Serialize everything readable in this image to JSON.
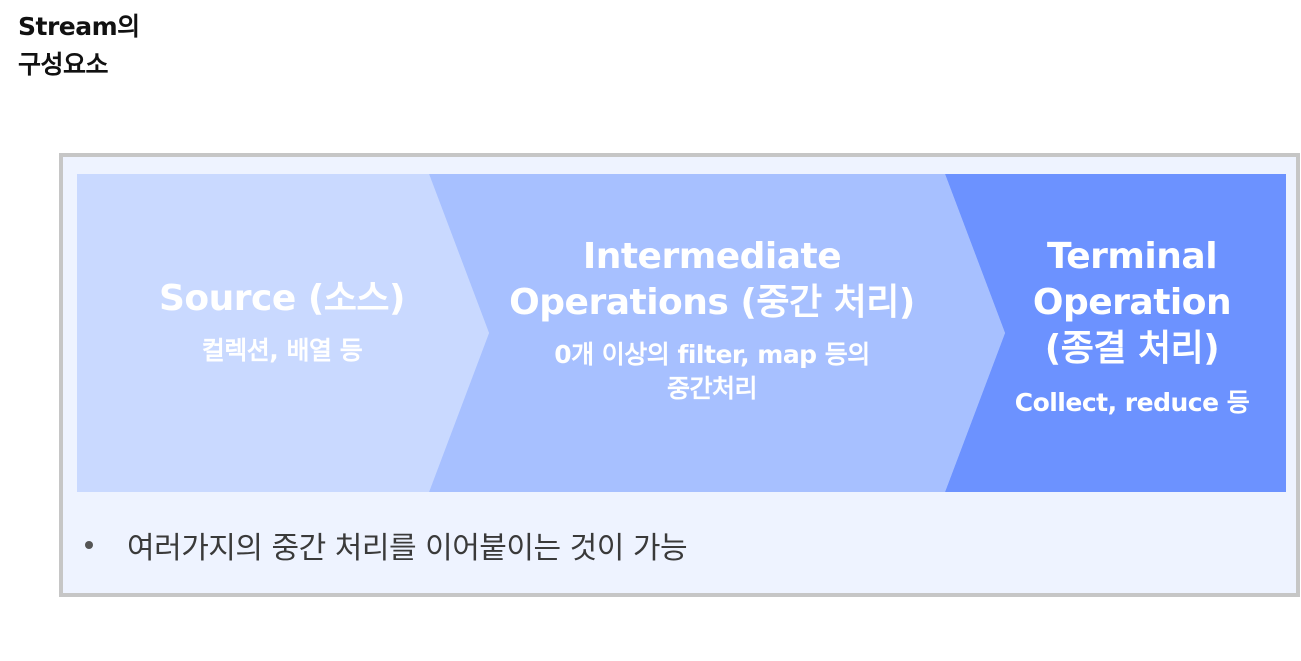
{
  "title": {
    "line1": "Stream의",
    "line2": "구성요소"
  },
  "stages": [
    {
      "title": "Source (소스)",
      "subtitle": "컬렉션, 배열 등",
      "color": "#c9d9ff"
    },
    {
      "title_line1": "Intermediate",
      "title_line2": "Operations (중간 처리)",
      "subtitle_line1": "0개 이상의 filter, map 등의",
      "subtitle_line2": "중간처리",
      "color": "#a7c0ff"
    },
    {
      "title_line1": "Terminal",
      "title_line2": "Operation",
      "title_line3": "(종결 처리)",
      "subtitle": "Collect, reduce 등",
      "color": "#6c92ff"
    }
  ],
  "bullet": "여러가지의 중간 처리를 이어붙이는 것이 가능",
  "colors": {
    "frame_border": "#c6c6c6",
    "frame_background": "#eef3ff",
    "bullet_text": "#3a3a3a"
  }
}
